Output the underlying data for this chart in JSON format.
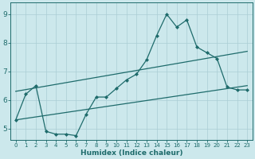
{
  "xlabel": "Humidex (Indice chaleur)",
  "xlim": [
    -0.5,
    23.5
  ],
  "ylim": [
    4.6,
    9.4
  ],
  "yticks": [
    5,
    6,
    7,
    8,
    9
  ],
  "xticks": [
    0,
    1,
    2,
    3,
    4,
    5,
    6,
    7,
    8,
    9,
    10,
    11,
    12,
    13,
    14,
    15,
    16,
    17,
    18,
    19,
    20,
    21,
    22,
    23
  ],
  "bg_color": "#cce8ec",
  "grid_color": "#aacdd4",
  "line_color": "#1e6b6b",
  "line1_x": [
    0,
    1,
    2,
    3,
    4,
    5,
    6,
    7,
    8,
    9,
    10,
    11,
    12,
    13,
    14,
    15,
    16,
    17,
    18,
    19,
    20,
    21,
    22,
    23
  ],
  "line1_y": [
    5.3,
    6.2,
    6.5,
    4.9,
    4.8,
    4.8,
    4.75,
    5.5,
    6.1,
    6.1,
    6.4,
    6.7,
    6.9,
    7.4,
    8.25,
    9.0,
    8.55,
    8.8,
    7.85,
    7.65,
    7.45,
    6.45,
    6.35,
    6.35
  ],
  "line2_x": [
    0,
    23
  ],
  "line2_y": [
    6.3,
    7.7
  ],
  "line3_x": [
    0,
    23
  ],
  "line3_y": [
    5.3,
    6.5
  ]
}
